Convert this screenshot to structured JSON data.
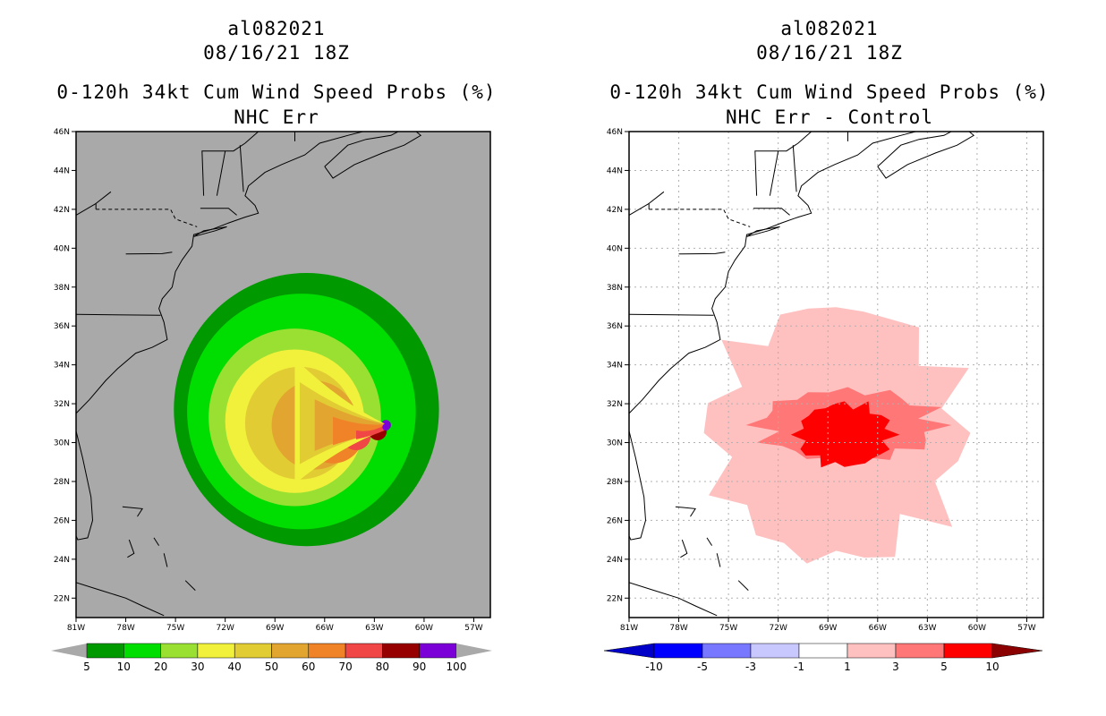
{
  "colors": {
    "ocean": "#a9a9a9",
    "land": "#a9a9a9",
    "left_levels": [
      "#009900",
      "#00dd00",
      "#99e033",
      "#f1f13b",
      "#e2cc33",
      "#e2a530",
      "#f08228",
      "#f04646",
      "#970000",
      "#7b00d7"
    ],
    "right_levels": [
      "#0000c8",
      "#0000ff",
      "#7777ff",
      "#c8c8ff",
      "#ffffff",
      "#ffc0c0",
      "#ff7777",
      "#ff0000",
      "#8b0000"
    ]
  },
  "chart_data": [
    {
      "type": "heatmap",
      "storm_id": "al082021",
      "datetime": "08/16/21 18Z",
      "title": "0-120h 34kt Cum Wind Speed Probs (%)",
      "subtitle": "NHC Err",
      "x_range_deg": [
        -81,
        -56
      ],
      "y_range_deg": [
        21,
        46
      ],
      "xticks": [
        "81W",
        "78W",
        "75W",
        "72W",
        "69W",
        "66W",
        "63W",
        "60W",
        "57W"
      ],
      "yticks": [
        "22N",
        "24N",
        "26N",
        "28N",
        "30N",
        "32N",
        "34N",
        "36N",
        "38N",
        "40N",
        "42N",
        "44N",
        "46N"
      ],
      "grid": false,
      "levels": [
        5,
        10,
        20,
        30,
        40,
        50,
        60,
        70,
        80,
        90,
        100
      ],
      "legend_labels": [
        "5",
        "10",
        "20",
        "30",
        "40",
        "50",
        "60",
        "70",
        "80",
        "90",
        "100"
      ],
      "storm_center": {
        "lon": -62.3,
        "lat": 30.8
      },
      "contours": [
        {
          "min_value": 5,
          "center": {
            "lon": -67.1,
            "lat": 31.7
          },
          "radius_deg": 8.0
        },
        {
          "min_value": 10,
          "center": {
            "lon": -67.4,
            "lat": 31.6
          },
          "radius_deg": 6.9
        },
        {
          "min_value": 20,
          "center": {
            "lon": -67.8,
            "lat": 31.3
          },
          "radius_deg": 5.2
        },
        {
          "min_value": 30,
          "center": {
            "lon": -67.8,
            "lat": 31.1
          },
          "radius_deg": 4.2
        },
        {
          "min_value": 40,
          "center": {
            "lon": -67.5,
            "lat": 31.0
          },
          "radius_deg": 3.3
        },
        {
          "min_value": 50,
          "center": {
            "lon": -66.6,
            "lat": 30.9
          },
          "radius_deg": 2.6
        },
        {
          "min_value": 60,
          "center": {
            "lon": -65.5,
            "lat": 30.6
          },
          "radius_deg": 1.9
        },
        {
          "min_value": 70,
          "center": {
            "lon": -64.1,
            "lat": 30.4
          },
          "radius_deg": 0.9
        },
        {
          "min_value": 80,
          "center": {
            "lon": -62.8,
            "lat": 30.6
          },
          "radius_deg": 0.55
        },
        {
          "min_value": 90,
          "center": {
            "lon": -62.3,
            "lat": 30.9
          },
          "radius_deg": 0.3
        }
      ]
    },
    {
      "type": "heatmap",
      "storm_id": "al082021",
      "datetime": "08/16/21 18Z",
      "title": "0-120h 34kt Cum Wind Speed Probs (%)",
      "subtitle": "NHC Err - Control",
      "x_range_deg": [
        -81,
        -56
      ],
      "y_range_deg": [
        21,
        46
      ],
      "xticks": [
        "81W",
        "78W",
        "75W",
        "72W",
        "69W",
        "66W",
        "63W",
        "60W",
        "57W"
      ],
      "yticks": [
        "22N",
        "24N",
        "26N",
        "28N",
        "30N",
        "32N",
        "34N",
        "36N",
        "38N",
        "40N",
        "42N",
        "44N",
        "46N"
      ],
      "grid": true,
      "levels": [
        -10,
        -5,
        -3,
        -1,
        1,
        3,
        5,
        10
      ],
      "legend_labels": [
        "-10",
        "-5",
        "-3",
        "-1",
        "1",
        "3",
        "5",
        "10"
      ],
      "regions": [
        {
          "min_value": 1,
          "center": {
            "lon": -68.5,
            "lat": 30.5
          },
          "extent_deg": [
            7.5,
            6.5
          ]
        },
        {
          "min_value": 3,
          "center": {
            "lon": -67.8,
            "lat": 30.9
          },
          "extent_deg": [
            5.3,
            1.8
          ]
        },
        {
          "min_value": 5,
          "center": {
            "lon": -68.0,
            "lat": 30.4
          },
          "extent_deg": [
            2.8,
            1.6
          ]
        }
      ]
    }
  ]
}
